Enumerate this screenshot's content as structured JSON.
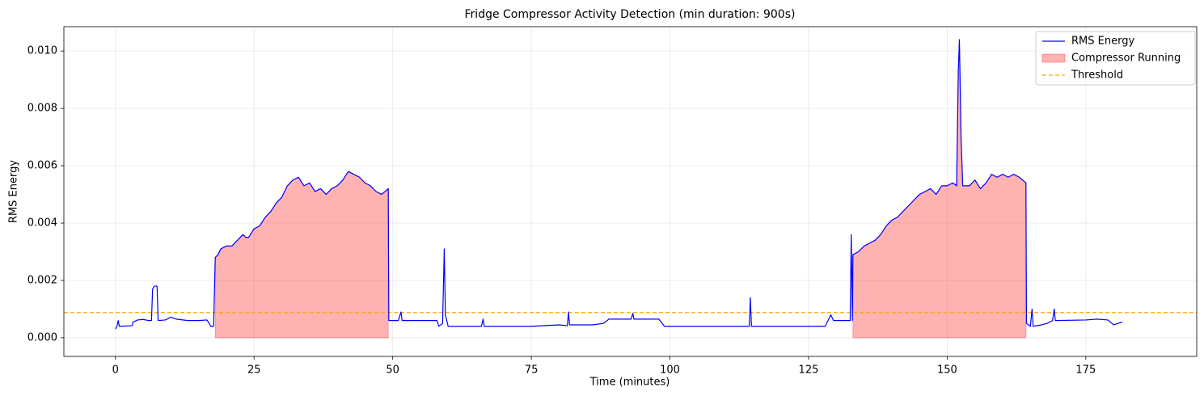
{
  "chart_data": {
    "type": "line",
    "title": "Fridge Compressor Activity Detection (min duration: 900s)",
    "x_label": "Time (minutes)",
    "y_label": "RMS Energy",
    "xlim": [
      -9.3,
      195
    ],
    "ylim": [
      -0.00065,
      0.01085
    ],
    "xticks": [
      0,
      25,
      50,
      75,
      100,
      125,
      150,
      175
    ],
    "yticks": [
      {
        "value": 0,
        "label": "0.000"
      },
      {
        "value": 0.002,
        "label": "0.002"
      },
      {
        "value": 0.004,
        "label": "0.004"
      },
      {
        "value": 0.006,
        "label": "0.006"
      },
      {
        "value": 0.008,
        "label": "0.008"
      },
      {
        "value": 0.01,
        "label": "0.010"
      }
    ],
    "grid": true,
    "legend": "upper right",
    "series": [
      {
        "name": "RMS Energy",
        "color": "blue",
        "x": [
          0,
          0.3,
          0.5,
          0.7,
          3,
          3.2,
          4,
          5,
          6,
          6.5,
          6.7,
          7,
          7.5,
          7.7,
          9,
          10,
          11,
          13,
          15,
          16.5,
          17.2,
          17.7,
          18,
          18.5,
          19,
          20,
          21,
          22,
          23,
          23.5,
          24,
          25,
          26,
          27,
          28,
          29,
          30,
          31,
          32,
          33,
          34,
          35,
          36,
          37,
          38,
          39,
          40,
          41,
          42,
          43,
          44,
          45,
          46,
          47,
          48,
          49.2,
          49.3,
          51,
          51.5,
          51.7,
          58,
          58.3,
          59,
          59.3,
          59.5,
          60,
          66,
          66.3,
          66.5,
          75,
          80,
          81.5,
          81.7,
          81.9,
          86,
          88,
          89,
          93,
          93.3,
          93.5,
          98,
          99,
          110,
          114.3,
          114.5,
          114.7,
          125,
          128,
          128.5,
          129,
          129.5,
          132,
          132.5,
          132.7,
          132.9,
          133,
          134,
          135,
          136,
          137,
          138,
          139,
          140,
          141,
          142,
          143,
          144,
          145,
          146,
          147,
          148,
          149,
          150,
          151,
          151.7,
          152,
          152.2,
          152.5,
          152.8,
          154,
          155,
          156,
          157,
          158,
          159,
          160,
          161,
          162,
          163,
          164.2,
          164.3,
          165,
          165.3,
          165.5,
          167,
          168,
          169,
          169.3,
          169.5,
          175,
          177,
          179,
          180,
          181.6
        ],
        "values": [
          0.0003,
          0.00042,
          0.0006,
          0.0004,
          0.00042,
          0.00055,
          0.00062,
          0.00064,
          0.0006,
          0.0006,
          0.0017,
          0.0018,
          0.0018,
          0.0006,
          0.00062,
          0.00072,
          0.00065,
          0.0006,
          0.0006,
          0.00062,
          0.0004,
          0.0004,
          0.0028,
          0.0029,
          0.0031,
          0.0032,
          0.0032,
          0.0034,
          0.0036,
          0.0035,
          0.0035,
          0.0038,
          0.0039,
          0.0042,
          0.0044,
          0.0047,
          0.0049,
          0.0053,
          0.0055,
          0.0056,
          0.0053,
          0.0054,
          0.0051,
          0.0052,
          0.005,
          0.0052,
          0.0053,
          0.0055,
          0.0058,
          0.0057,
          0.0056,
          0.0054,
          0.0053,
          0.0051,
          0.005,
          0.0052,
          0.0006,
          0.0006,
          0.0009,
          0.0006,
          0.0006,
          0.0004,
          0.0005,
          0.0031,
          0.0008,
          0.0004,
          0.0004,
          0.00065,
          0.0004,
          0.0004,
          0.00045,
          0.00042,
          0.0009,
          0.00045,
          0.00045,
          0.0005,
          0.00065,
          0.00065,
          0.00085,
          0.00065,
          0.00065,
          0.0004,
          0.0004,
          0.0004,
          0.0014,
          0.0004,
          0.0004,
          0.0004,
          0.0006,
          0.0008,
          0.0006,
          0.0006,
          0.0006,
          0.0036,
          0.0006,
          0.0029,
          0.003,
          0.0032,
          0.0033,
          0.0034,
          0.0036,
          0.0039,
          0.0041,
          0.0042,
          0.0044,
          0.0046,
          0.0048,
          0.005,
          0.0051,
          0.0052,
          0.005,
          0.0053,
          0.0053,
          0.0054,
          0.0053,
          0.0093,
          0.0104,
          0.007,
          0.0053,
          0.0053,
          0.0055,
          0.0052,
          0.0054,
          0.0057,
          0.0056,
          0.0057,
          0.0056,
          0.0057,
          0.0056,
          0.0054,
          0.0005,
          0.0004,
          0.001,
          0.0004,
          0.00045,
          0.0005,
          0.0006,
          0.001,
          0.0006,
          0.00062,
          0.00065,
          0.00062,
          0.00045,
          0.00055
        ]
      }
    ],
    "regions": {
      "name": "Compressor Running",
      "color": "red",
      "spans": [
        {
          "start": 18,
          "end": 49.2
        },
        {
          "start": 133,
          "end": 164.2
        }
      ]
    },
    "threshold": {
      "name": "Threshold",
      "color": "orange",
      "value": 0.00088
    }
  }
}
